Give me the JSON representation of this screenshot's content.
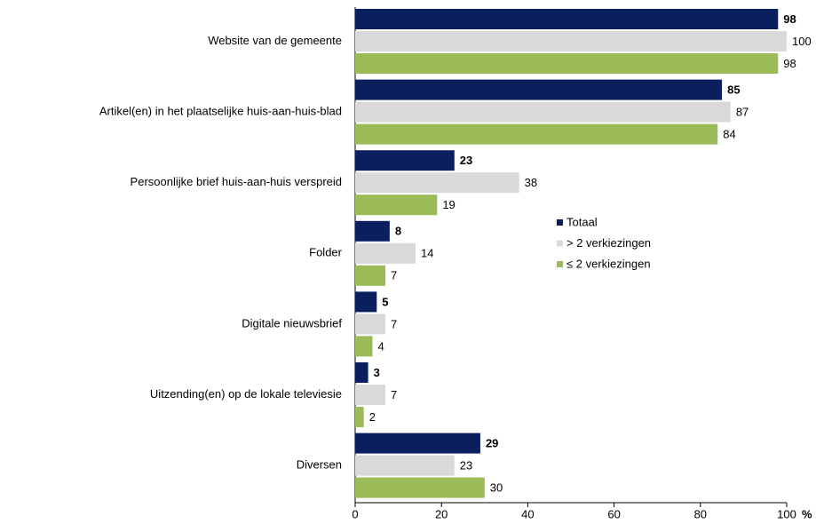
{
  "chart_data": {
    "type": "bar",
    "orientation": "horizontal",
    "categories": [
      "Website van de gemeente",
      "Artikel(en) in het plaatselijke huis-aan-huis-blad",
      "Persoonlijke brief huis-aan-huis verspreid",
      "Folder",
      "Digitale nieuwsbrief",
      "Uitzending(en) op de lokale televiesie",
      "Diversen"
    ],
    "series": [
      {
        "name": "Totaal",
        "color": "#0b1f5e",
        "values": [
          98,
          85,
          23,
          8,
          5,
          3,
          29
        ]
      },
      {
        "name": "> 2 verkiezingen",
        "color": "#d9d9d9",
        "values": [
          100,
          87,
          38,
          14,
          7,
          7,
          23
        ]
      },
      {
        "name": "≤ 2 verkiezingen",
        "color": "#9bbb59",
        "values": [
          98,
          84,
          19,
          7,
          4,
          2,
          30
        ]
      }
    ],
    "xlim": [
      0,
      100
    ],
    "xticks": [
      0,
      20,
      40,
      60,
      80,
      100
    ],
    "xlabel": "%",
    "legend": "right"
  }
}
